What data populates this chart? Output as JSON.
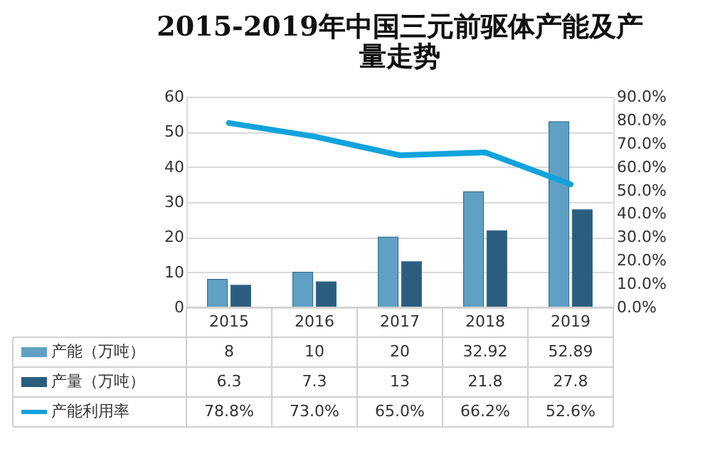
{
  "chart_data": {
    "type": "bar",
    "title": "2015-2019年中国三元前驱体产能及产量走势",
    "categories": [
      "2015",
      "2016",
      "2017",
      "2018",
      "2019"
    ],
    "series": [
      {
        "name": "产能（万吨）",
        "color": "#5fa0c4",
        "values": [
          8,
          10,
          20,
          32.92,
          52.89
        ],
        "value_labels": [
          "8",
          "10",
          "20",
          "32.92",
          "52.89"
        ]
      },
      {
        "name": "产量（万吨）",
        "color": "#2b5d7e",
        "values": [
          6.3,
          7.3,
          13,
          21.8,
          27.8
        ],
        "value_labels": [
          "6.3",
          "7.3",
          "13",
          "21.8",
          "27.8"
        ]
      },
      {
        "name": "产能利用率",
        "type": "line",
        "axis": "y2",
        "color": "#12a3dc",
        "values": [
          78.8,
          73.0,
          65.0,
          66.2,
          52.6
        ],
        "value_labels": [
          "78.8%",
          "73.0%",
          "65.0%",
          "66.2%",
          "52.6%"
        ]
      }
    ],
    "ylim": [
      0,
      60
    ],
    "yticks": [
      0,
      10,
      20,
      30,
      40,
      50,
      60
    ],
    "y2lim": [
      0,
      90
    ],
    "y2ticks": [
      {
        "value": 0,
        "label": "0.0%"
      },
      {
        "value": 10,
        "label": "10.0%"
      },
      {
        "value": 20,
        "label": "20.0%"
      },
      {
        "value": 30,
        "label": "30.0%"
      },
      {
        "value": 40,
        "label": "40.0%"
      },
      {
        "value": 50,
        "label": "50.0%"
      },
      {
        "value": 60,
        "label": "60.0%"
      },
      {
        "value": 70,
        "label": "70.0%"
      },
      {
        "value": 80,
        "label": "80.0%"
      },
      {
        "value": 90,
        "label": "90.0%"
      }
    ],
    "grid": "y",
    "legend": "bottom"
  }
}
